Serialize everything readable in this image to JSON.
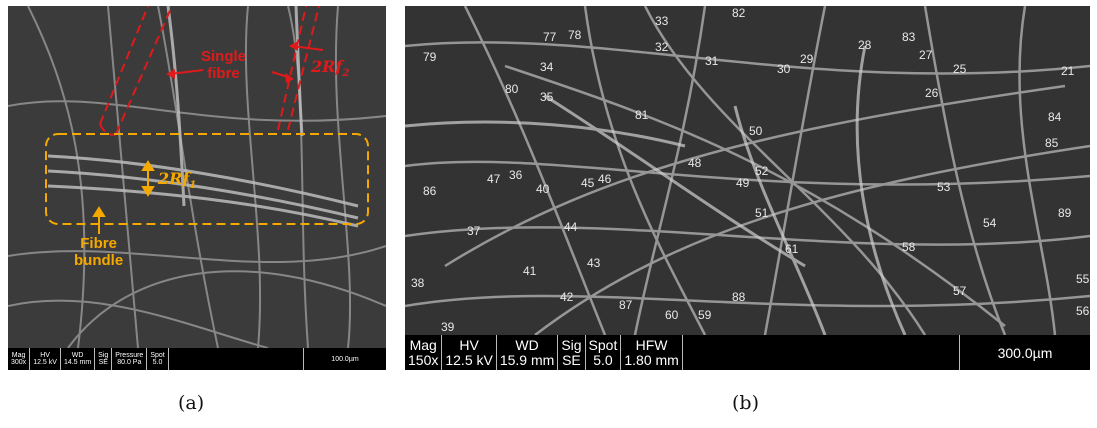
{
  "panel_a": {
    "labels": {
      "single_fibre": "Single\nfibre",
      "rf2": "2Rf",
      "rf2_sub": "2",
      "rf1": "2Rf",
      "rf1_sub": "1",
      "fibre_bundle": "Fibre\nbundle"
    },
    "databar": {
      "cells": [
        {
          "h": "Mag",
          "v": "300x"
        },
        {
          "h": "HV",
          "v": "12.5 kV"
        },
        {
          "h": "WD",
          "v": "14.5 mm"
        },
        {
          "h": "Sig",
          "v": "SE"
        },
        {
          "h": "Pressure",
          "v": "80.0 Pa"
        },
        {
          "h": "Spot",
          "v": "5.0"
        }
      ],
      "scale": "100.0µm"
    },
    "caption": "(a)",
    "colors": {
      "annotation_red": "#e01a1a",
      "annotation_orange": "#f5a800"
    }
  },
  "panel_b": {
    "fibre_numbers": [
      "33",
      "82",
      "77",
      "78",
      "32",
      "79",
      "31",
      "30",
      "29",
      "28",
      "83",
      "27",
      "25",
      "34",
      "21",
      "80",
      "35",
      "26",
      "81",
      "84",
      "50",
      "85",
      "48",
      "52",
      "86",
      "47",
      "36",
      "40",
      "45",
      "46",
      "49",
      "53",
      "51",
      "89",
      "37",
      "44",
      "54",
      "58",
      "61",
      "43",
      "41",
      "38",
      "55",
      "42",
      "87",
      "88",
      "57",
      "60",
      "59",
      "56",
      "39"
    ],
    "databar": {
      "cells": [
        {
          "h": "Mag",
          "v": "150x"
        },
        {
          "h": "HV",
          "v": "12.5 kV"
        },
        {
          "h": "WD",
          "v": "15.9 mm"
        },
        {
          "h": "Sig",
          "v": "SE"
        },
        {
          "h": "Spot",
          "v": "5.0"
        },
        {
          "h": "HFW",
          "v": "1.80 mm"
        }
      ],
      "scale": "300.0µm"
    },
    "caption": "(b)"
  }
}
